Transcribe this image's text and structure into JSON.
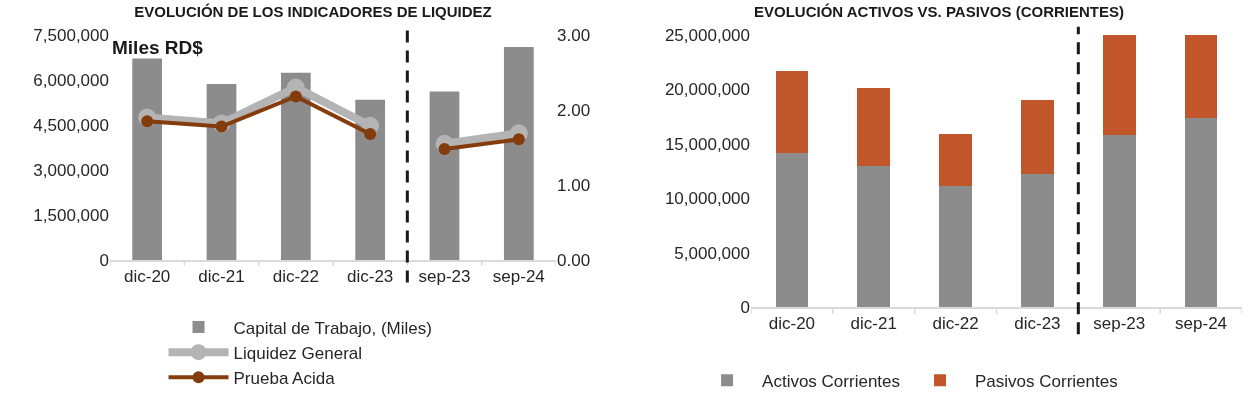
{
  "chart_data": [
    {
      "type": "bar",
      "title": "EVOLUCIÓN DE LOS INDICADORES DE LIQUIDEZ",
      "categories": [
        "dic-20",
        "dic-21",
        "dic-22",
        "dic-23",
        "sep-23",
        "sep-24"
      ],
      "series": [
        {
          "name": "Capital de Trabajo, (Miles)",
          "color": "#8c8c8c",
          "values": [
            6720000,
            5870000,
            6240000,
            5340000,
            5620000,
            7100000
          ]
        },
        {
          "name": "Liquidez General",
          "type": "line",
          "axis": "y2",
          "marker": "circle",
          "color": "#b4b4b4",
          "values": [
            1.9,
            1.82,
            2.3,
            1.79,
            1.55,
            1.69
          ]
        },
        {
          "name": "Prueba Acida",
          "type": "line",
          "axis": "y2",
          "marker": "circle",
          "color": "#843c0c",
          "values": [
            1.85,
            1.78,
            2.18,
            1.68,
            1.48,
            1.61
          ]
        }
      ],
      "ylim": [
        0,
        7500000
      ],
      "yticks": [
        0,
        {
          "value": 1500000,
          "label": "1,500,000"
        },
        {
          "value": 3000000,
          "label": "3,000,000"
        },
        {
          "value": 4500000,
          "label": "4,500,000"
        },
        {
          "value": 6000000,
          "label": "6,000,000"
        },
        {
          "value": 7500000,
          "label": "7,500,000"
        }
      ],
      "y2lim": [
        0,
        3
      ],
      "y2ticks": [
        {
          "value": 0,
          "label": "0.00"
        },
        {
          "value": 1,
          "label": "1.00"
        },
        {
          "value": 2,
          "label": "2.00"
        },
        {
          "value": 3,
          "label": "3.00"
        }
      ],
      "annotations": [
        "Miles RD$"
      ],
      "legend": "bottom"
    },
    {
      "type": "bar",
      "title": "EVOLUCIÓN ACTIVOS VS. PASIVOS (CORRIENTES)",
      "categories": [
        "dic-20",
        "dic-21",
        "dic-22",
        "dic-23",
        "sep-23",
        "sep-24"
      ],
      "stacked": true,
      "series": [
        {
          "name": "Activos Corrientes",
          "color": "#8c8c8c",
          "values": [
            14200000,
            13000000,
            11100000,
            12200000,
            15800000,
            17400000
          ]
        },
        {
          "name": "Pasivos Corrientes",
          "color": "#c0562a",
          "values": [
            7500000,
            7100000,
            4800000,
            6800000,
            9200000,
            7600000
          ]
        }
      ],
      "ylim": [
        0,
        25000000
      ],
      "yticks": [
        0,
        {
          "value": 5000000,
          "label": "5,000,000"
        },
        {
          "value": 10000000,
          "label": "10,000,000"
        },
        {
          "value": 15000000,
          "label": "15,000,000"
        },
        {
          "value": 20000000,
          "label": "20,000,000"
        },
        {
          "value": 25000000,
          "label": "25,000,000"
        }
      ],
      "legend": "bottom"
    }
  ]
}
